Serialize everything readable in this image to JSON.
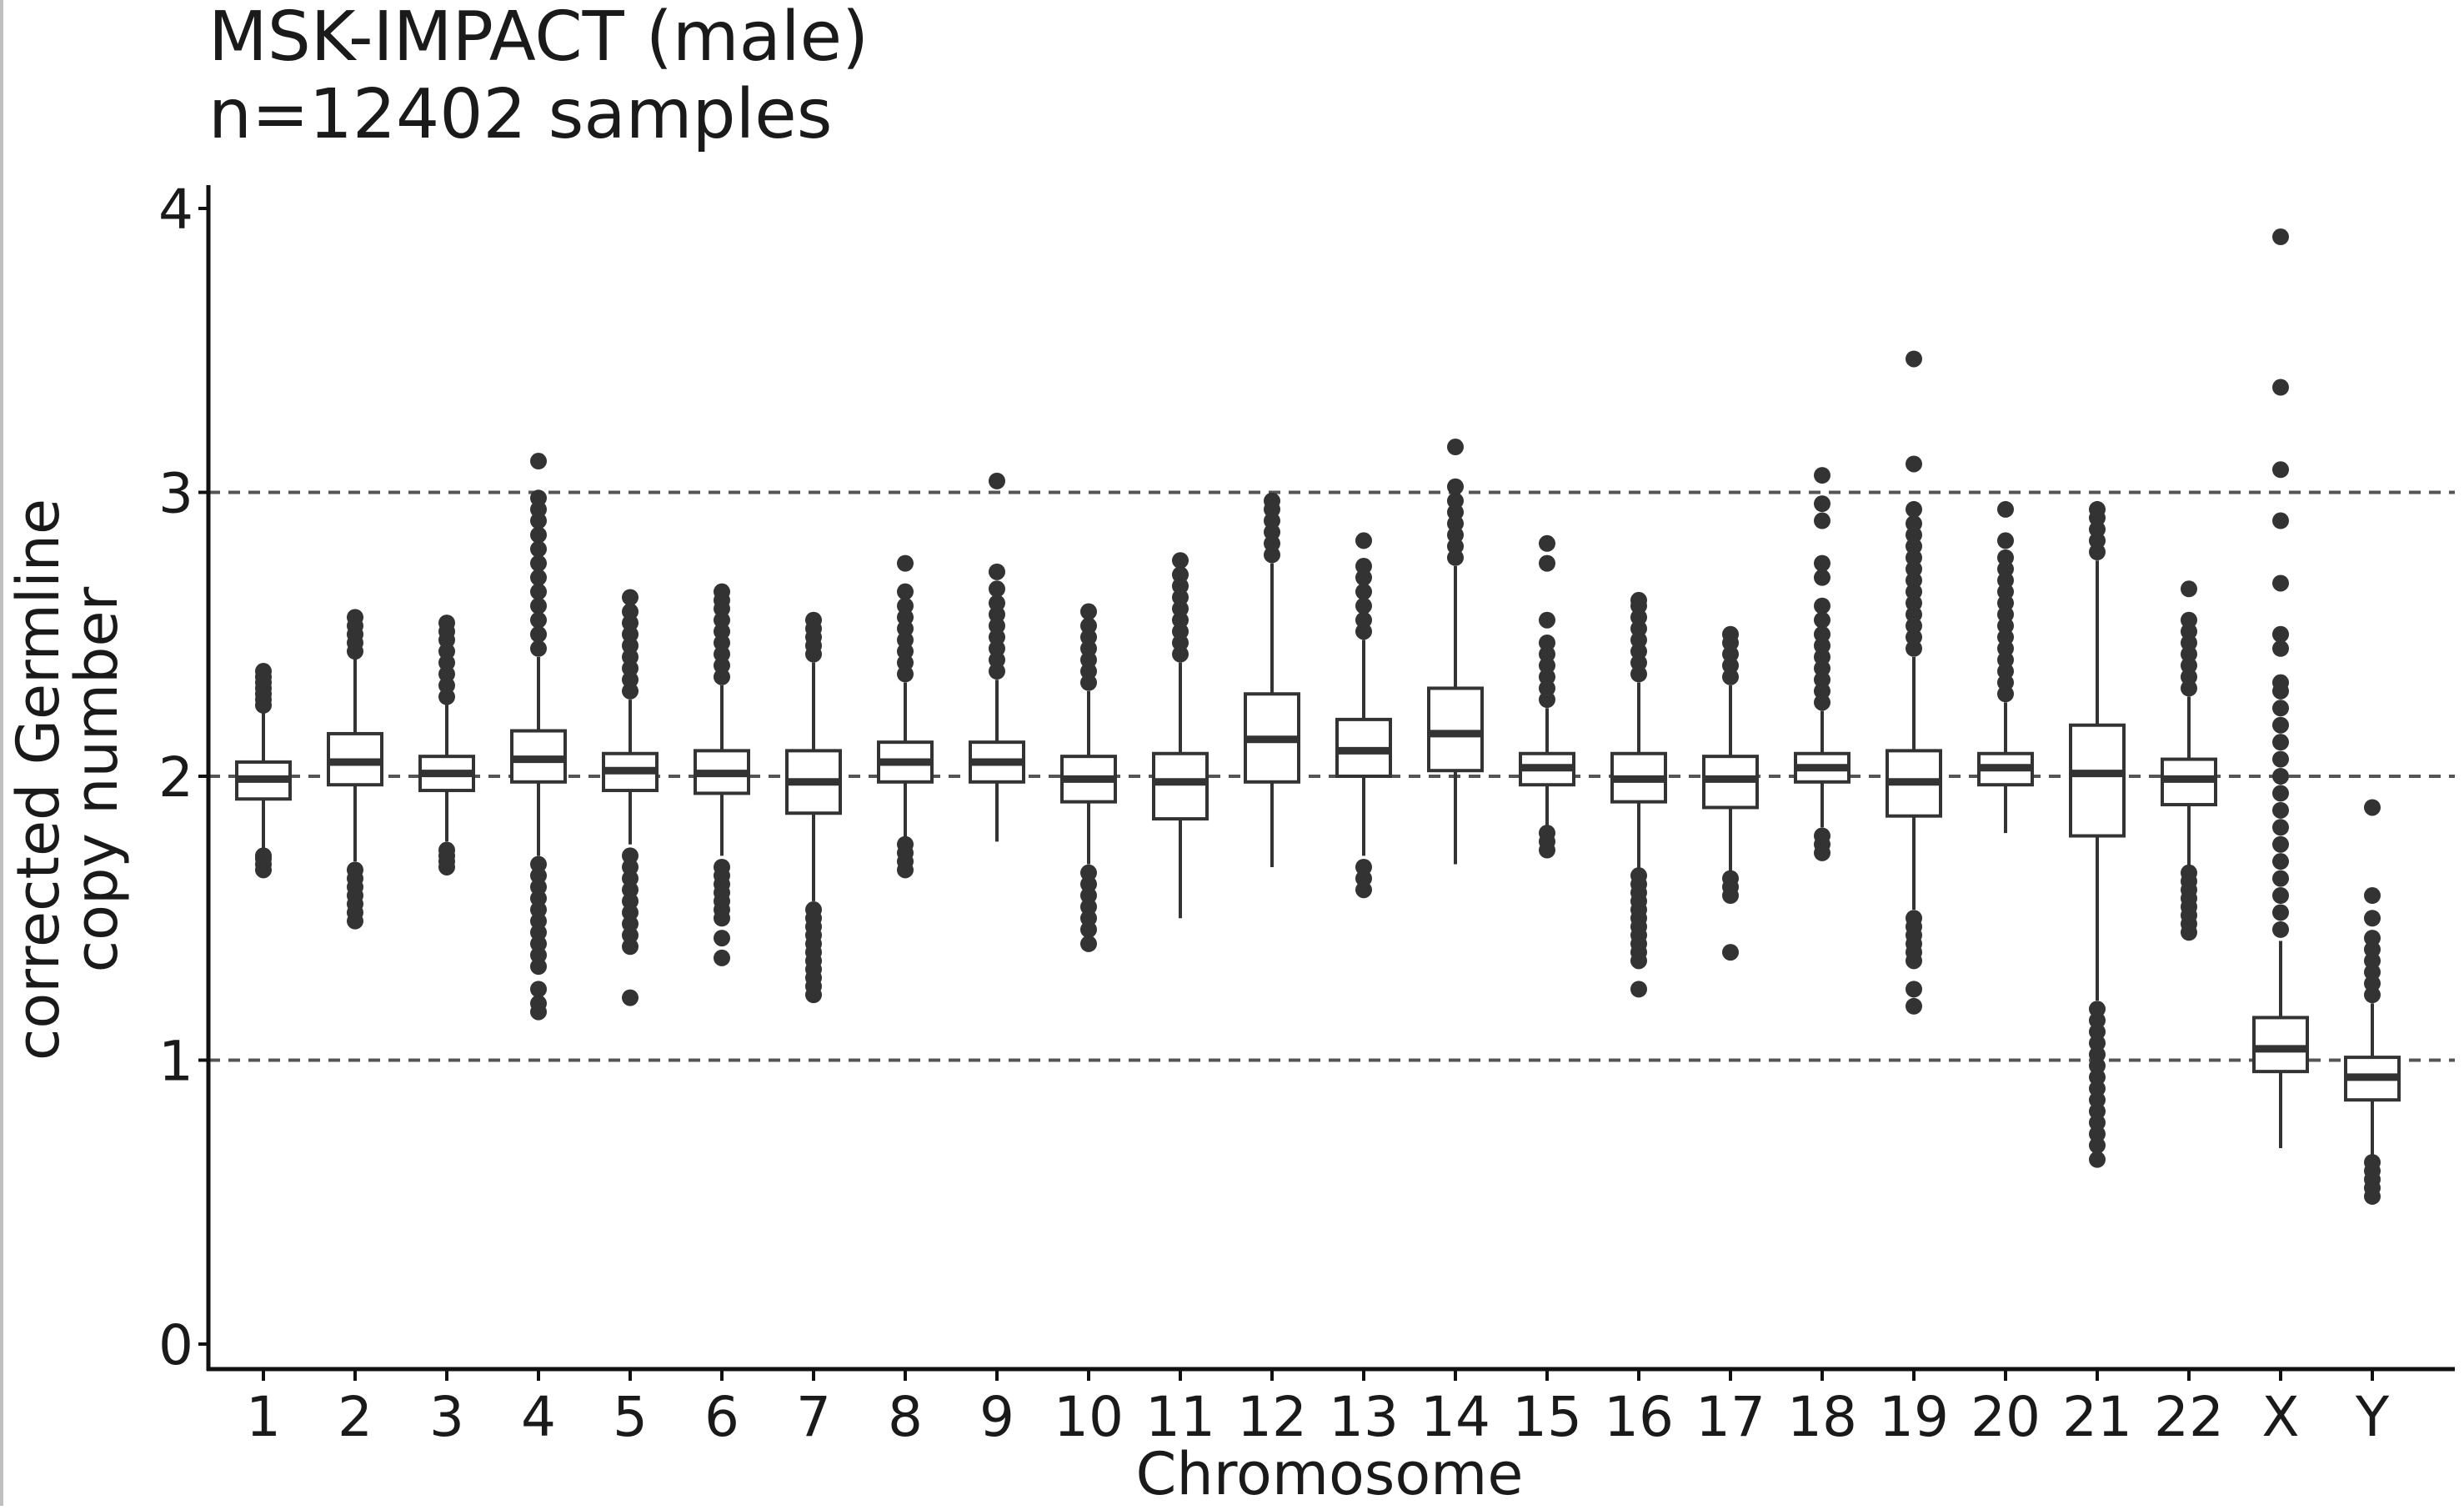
{
  "chart_data": {
    "type": "box",
    "title_line1": "MSK-IMPACT (male)",
    "title_line2": "n=12402 samples",
    "xlabel": "Chromosome",
    "ylabel_line1": "corrected Germline",
    "ylabel_line2": "copy number",
    "ylim": [
      0,
      4
    ],
    "yticks": [
      0,
      1,
      2,
      3,
      4
    ],
    "reference_lines": [
      1,
      2,
      3
    ],
    "grid": false,
    "categories": [
      "1",
      "2",
      "3",
      "4",
      "5",
      "6",
      "7",
      "8",
      "9",
      "10",
      "11",
      "12",
      "13",
      "14",
      "15",
      "16",
      "17",
      "18",
      "19",
      "20",
      "21",
      "22",
      "X",
      "Y"
    ],
    "series": [
      {
        "category": "1",
        "q1": 1.92,
        "median": 1.99,
        "q3": 2.05,
        "whisker_low": 1.73,
        "whisker_high": 2.23,
        "outliers": [
          1.67,
          1.69,
          1.71,
          1.72,
          2.25,
          2.27,
          2.29,
          2.31,
          2.33,
          2.35,
          2.37
        ]
      },
      {
        "category": "2",
        "q1": 1.97,
        "median": 2.05,
        "q3": 2.15,
        "whisker_low": 1.7,
        "whisker_high": 2.42,
        "outliers": [
          1.49,
          1.52,
          1.55,
          1.58,
          1.61,
          1.64,
          1.67,
          2.44,
          2.47,
          2.5,
          2.53,
          2.56
        ]
      },
      {
        "category": "3",
        "q1": 1.95,
        "median": 2.01,
        "q3": 2.07,
        "whisker_low": 1.77,
        "whisker_high": 2.26,
        "outliers": [
          1.68,
          1.7,
          1.72,
          1.74,
          2.28,
          2.32,
          2.36,
          2.4,
          2.44,
          2.48,
          2.51,
          2.54
        ]
      },
      {
        "category": "4",
        "q1": 1.98,
        "median": 2.06,
        "q3": 2.16,
        "whisker_low": 1.72,
        "whisker_high": 2.42,
        "outliers": [
          1.17,
          1.2,
          1.25,
          1.33,
          1.37,
          1.41,
          1.45,
          1.49,
          1.53,
          1.57,
          1.61,
          1.65,
          1.69,
          2.45,
          2.5,
          2.55,
          2.6,
          2.65,
          2.7,
          2.75,
          2.8,
          2.85,
          2.9,
          2.94,
          2.98,
          3.11
        ]
      },
      {
        "category": "5",
        "q1": 1.95,
        "median": 2.02,
        "q3": 2.08,
        "whisker_low": 1.76,
        "whisker_high": 2.27,
        "outliers": [
          1.22,
          1.4,
          1.44,
          1.48,
          1.52,
          1.56,
          1.6,
          1.64,
          1.68,
          1.72,
          2.3,
          2.34,
          2.38,
          2.42,
          2.46,
          2.5,
          2.54,
          2.58,
          2.63
        ]
      },
      {
        "category": "6",
        "q1": 1.94,
        "median": 2.01,
        "q3": 2.09,
        "whisker_low": 1.72,
        "whisker_high": 2.32,
        "outliers": [
          1.36,
          1.43,
          1.5,
          1.53,
          1.56,
          1.59,
          1.62,
          1.65,
          1.68,
          2.35,
          2.39,
          2.43,
          2.47,
          2.51,
          2.55,
          2.59,
          2.62,
          2.65
        ]
      },
      {
        "category": "7",
        "q1": 1.87,
        "median": 1.98,
        "q3": 2.09,
        "whisker_low": 1.56,
        "whisker_high": 2.4,
        "outliers": [
          1.23,
          1.26,
          1.29,
          1.32,
          1.35,
          1.38,
          1.41,
          1.44,
          1.47,
          1.5,
          1.53,
          2.43,
          2.46,
          2.49,
          2.52,
          2.55
        ]
      },
      {
        "category": "8",
        "q1": 1.98,
        "median": 2.05,
        "q3": 2.12,
        "whisker_low": 1.78,
        "whisker_high": 2.33,
        "outliers": [
          1.67,
          1.7,
          1.73,
          1.76,
          2.36,
          2.4,
          2.44,
          2.48,
          2.52,
          2.56,
          2.6,
          2.65,
          2.75
        ]
      },
      {
        "category": "9",
        "q1": 1.98,
        "median": 2.05,
        "q3": 2.12,
        "whisker_low": 1.77,
        "whisker_high": 2.34,
        "outliers": [
          2.37,
          2.41,
          2.45,
          2.49,
          2.53,
          2.57,
          2.61,
          2.66,
          2.72,
          3.04
        ]
      },
      {
        "category": "10",
        "q1": 1.91,
        "median": 1.99,
        "q3": 2.07,
        "whisker_low": 1.69,
        "whisker_high": 2.3,
        "outliers": [
          1.41,
          1.46,
          1.5,
          1.54,
          1.58,
          1.62,
          1.66,
          2.33,
          2.37,
          2.41,
          2.45,
          2.49,
          2.53,
          2.58
        ]
      },
      {
        "category": "11",
        "q1": 1.85,
        "median": 1.98,
        "q3": 2.08,
        "whisker_low": 1.5,
        "whisker_high": 2.4,
        "outliers": [
          2.43,
          2.47,
          2.51,
          2.55,
          2.59,
          2.63,
          2.67,
          2.71,
          2.76
        ]
      },
      {
        "category": "12",
        "q1": 1.98,
        "median": 2.13,
        "q3": 2.29,
        "whisker_low": 1.68,
        "whisker_high": 2.75,
        "outliers": [
          2.78,
          2.82,
          2.86,
          2.9,
          2.94,
          2.97
        ]
      },
      {
        "category": "13",
        "q1": 2.0,
        "median": 2.09,
        "q3": 2.2,
        "whisker_low": 1.72,
        "whisker_high": 2.48,
        "outliers": [
          1.6,
          1.64,
          1.68,
          2.51,
          2.55,
          2.6,
          2.65,
          2.7,
          2.74,
          2.83
        ]
      },
      {
        "category": "14",
        "q1": 2.02,
        "median": 2.15,
        "q3": 2.31,
        "whisker_low": 1.69,
        "whisker_high": 2.74,
        "outliers": [
          2.77,
          2.81,
          2.85,
          2.89,
          2.93,
          2.97,
          3.02,
          3.16
        ]
      },
      {
        "category": "15",
        "q1": 1.97,
        "median": 2.03,
        "q3": 2.08,
        "whisker_low": 1.82,
        "whisker_high": 2.24,
        "outliers": [
          1.74,
          1.77,
          1.8,
          2.27,
          2.31,
          2.35,
          2.39,
          2.43,
          2.47,
          2.55,
          2.75,
          2.82
        ]
      },
      {
        "category": "16",
        "q1": 1.91,
        "median": 1.99,
        "q3": 2.08,
        "whisker_low": 1.66,
        "whisker_high": 2.33,
        "outliers": [
          1.25,
          1.35,
          1.38,
          1.41,
          1.44,
          1.47,
          1.5,
          1.53,
          1.56,
          1.59,
          1.62,
          1.65,
          2.36,
          2.4,
          2.44,
          2.48,
          2.52,
          2.56,
          2.6,
          2.62
        ]
      },
      {
        "category": "17",
        "q1": 1.89,
        "median": 1.99,
        "q3": 2.07,
        "whisker_low": 1.64,
        "whisker_high": 2.32,
        "outliers": [
          1.38,
          1.58,
          1.61,
          1.64,
          2.35,
          2.39,
          2.43,
          2.47,
          2.5
        ]
      },
      {
        "category": "18",
        "q1": 1.98,
        "median": 2.03,
        "q3": 2.08,
        "whisker_low": 1.82,
        "whisker_high": 2.23,
        "outliers": [
          1.73,
          1.76,
          1.79,
          2.26,
          2.3,
          2.34,
          2.38,
          2.42,
          2.46,
          2.5,
          2.55,
          2.6,
          2.7,
          2.75,
          2.9,
          2.96,
          3.06
        ]
      },
      {
        "category": "19",
        "q1": 1.86,
        "median": 1.98,
        "q3": 2.09,
        "whisker_low": 1.53,
        "whisker_high": 2.42,
        "outliers": [
          1.19,
          1.25,
          1.35,
          1.38,
          1.41,
          1.44,
          1.47,
          1.5,
          2.45,
          2.49,
          2.53,
          2.57,
          2.61,
          2.65,
          2.69,
          2.73,
          2.77,
          2.81,
          2.85,
          2.89,
          2.94,
          3.1,
          3.47
        ]
      },
      {
        "category": "20",
        "q1": 1.97,
        "median": 2.03,
        "q3": 2.08,
        "whisker_low": 1.8,
        "whisker_high": 2.26,
        "outliers": [
          2.29,
          2.33,
          2.37,
          2.41,
          2.45,
          2.49,
          2.53,
          2.57,
          2.61,
          2.65,
          2.69,
          2.73,
          2.77,
          2.83,
          2.94
        ]
      },
      {
        "category": "21",
        "q1": 1.79,
        "median": 2.01,
        "q3": 2.18,
        "whisker_low": 1.21,
        "whisker_high": 2.76,
        "outliers": [
          0.65,
          0.7,
          0.74,
          0.78,
          0.82,
          0.86,
          0.9,
          0.94,
          0.98,
          1.02,
          1.06,
          1.1,
          1.14,
          1.18,
          2.79,
          2.83,
          2.87,
          2.91,
          2.94
        ]
      },
      {
        "category": "22",
        "q1": 1.9,
        "median": 1.99,
        "q3": 2.06,
        "whisker_low": 1.67,
        "whisker_high": 2.28,
        "outliers": [
          1.45,
          1.48,
          1.51,
          1.54,
          1.57,
          1.6,
          1.63,
          1.66,
          2.31,
          2.35,
          2.39,
          2.43,
          2.47,
          2.51,
          2.55,
          2.66
        ]
      },
      {
        "category": "X",
        "q1": 0.96,
        "median": 1.04,
        "q3": 1.15,
        "whisker_low": 0.69,
        "whisker_high": 1.42,
        "outliers": [
          1.46,
          1.52,
          1.58,
          1.64,
          1.7,
          1.76,
          1.82,
          1.88,
          1.94,
          2.0,
          2.06,
          2.12,
          2.18,
          2.24,
          2.3,
          2.33,
          2.45,
          2.5,
          2.68,
          2.9,
          3.08,
          3.37,
          3.9
        ]
      },
      {
        "category": "Y",
        "q1": 0.86,
        "median": 0.94,
        "q3": 1.01,
        "whisker_low": 0.66,
        "whisker_high": 1.2,
        "outliers": [
          0.52,
          0.55,
          0.58,
          0.61,
          0.64,
          1.23,
          1.27,
          1.31,
          1.35,
          1.39,
          1.43,
          1.5,
          1.58,
          1.89
        ]
      }
    ]
  }
}
